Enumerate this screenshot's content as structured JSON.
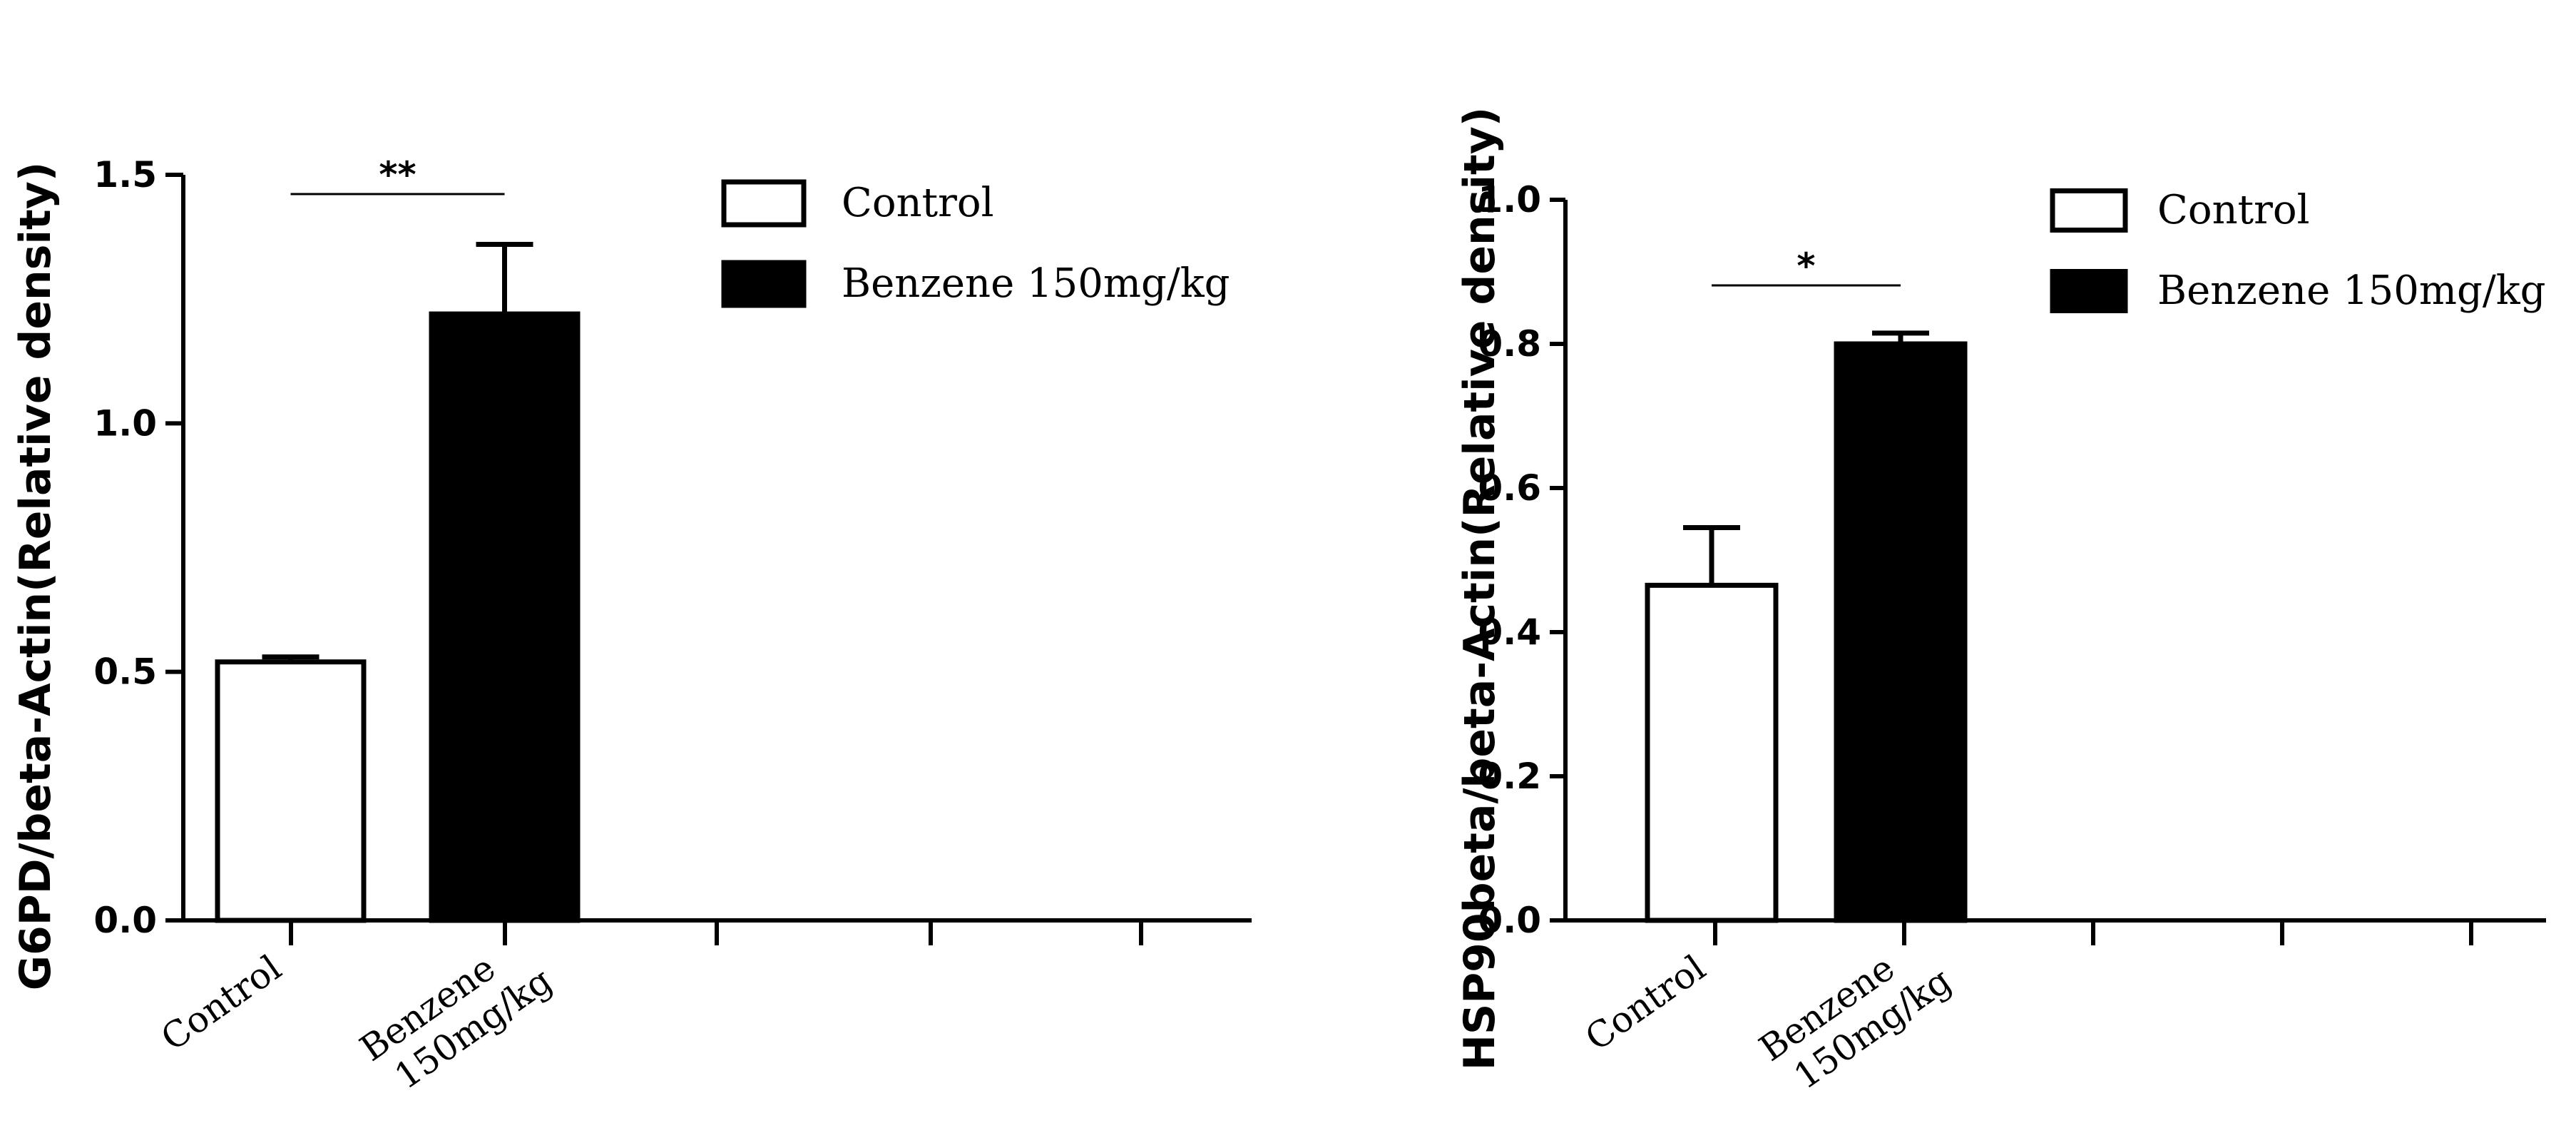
{
  "chart_data": [
    {
      "type": "bar",
      "title": "",
      "xlabel": "",
      "ylabel": "G6PD/beta-Actin(Relative density)",
      "ylim": [
        0,
        1.5
      ],
      "yticks": [
        "0.0",
        "0.5",
        "1.0",
        "1.5"
      ],
      "categories": [
        "Control",
        "Benzene 150mg/kg"
      ],
      "category_lines": [
        [
          "Control"
        ],
        [
          "Benzene",
          "150mg/kg"
        ]
      ],
      "values": [
        0.52,
        1.22
      ],
      "errors": [
        0.01,
        0.14
      ],
      "fills": [
        "#ffffff",
        "#000000"
      ],
      "extra_ticks": 3,
      "significance": "**",
      "legend": {
        "position": "top-right",
        "entries": [
          {
            "label": "Control",
            "fill": "#ffffff"
          },
          {
            "label": "Benzene 150mg/kg",
            "fill": "#000000"
          }
        ]
      }
    },
    {
      "type": "bar",
      "title": "",
      "xlabel": "",
      "ylabel": "HSP90beta/beta-Actin(Relative density)",
      "ylim": [
        0,
        1.0
      ],
      "yticks": [
        "0.0",
        "0.2",
        "0.4",
        "0.6",
        "0.8",
        "1.0"
      ],
      "categories": [
        "Control",
        "Benzene 150mg/kg"
      ],
      "category_lines": [
        [
          "Control"
        ],
        [
          "Benzene",
          "150mg/kg"
        ]
      ],
      "values": [
        0.465,
        0.8
      ],
      "errors": [
        0.08,
        0.015
      ],
      "fills": [
        "#ffffff",
        "#000000"
      ],
      "extra_ticks": 3,
      "significance": "*",
      "legend": {
        "position": "top-right",
        "entries": [
          {
            "label": "Control",
            "fill": "#ffffff"
          },
          {
            "label": "Benzene 150mg/kg",
            "fill": "#000000"
          }
        ]
      }
    }
  ]
}
